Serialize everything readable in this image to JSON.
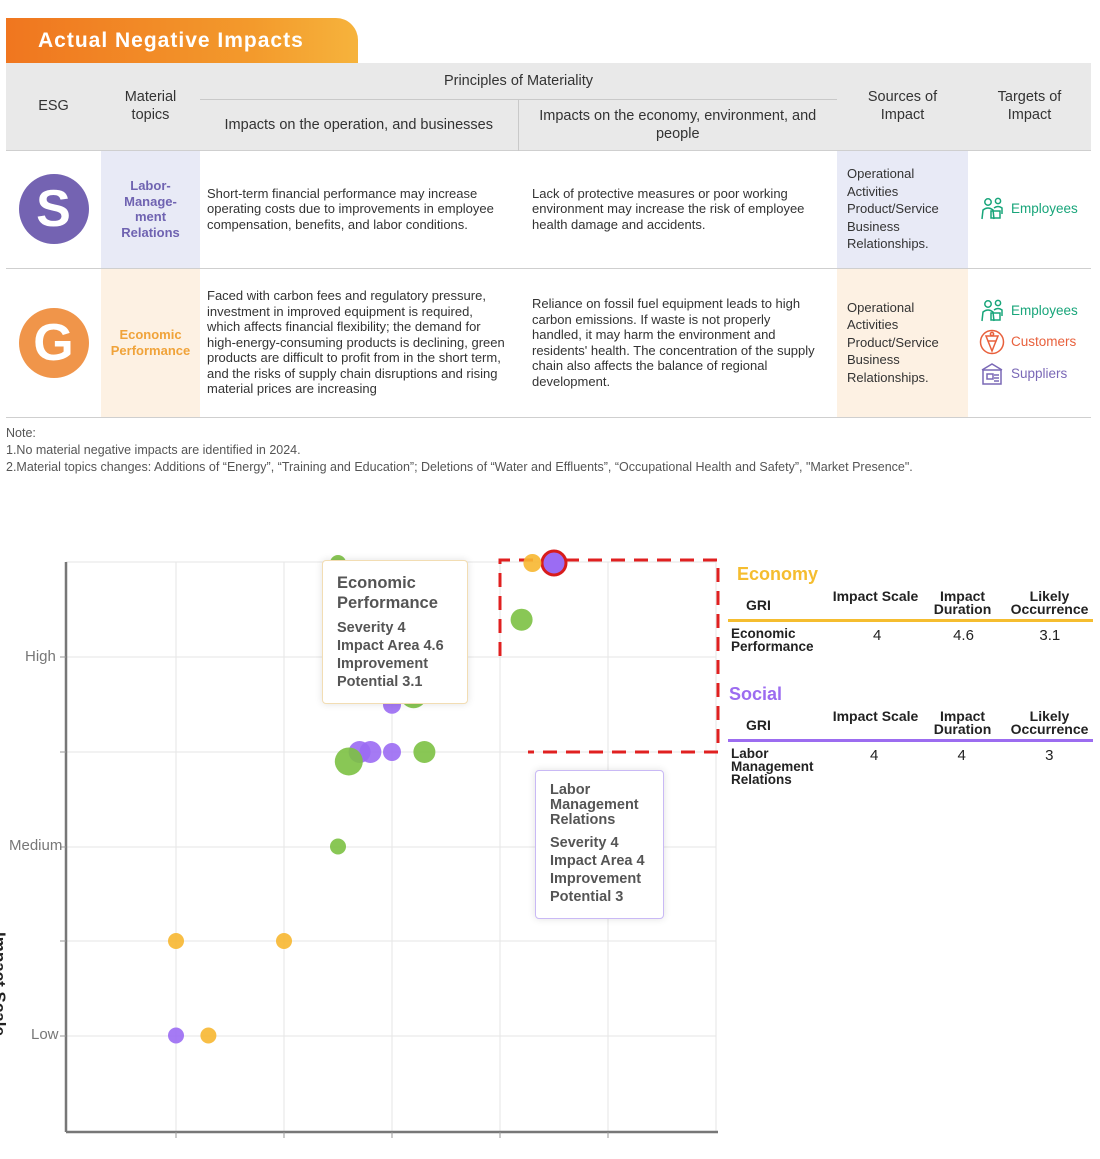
{
  "banner": "Actual Negative Impacts",
  "headers": {
    "esg": "ESG",
    "material": "Material topics",
    "principles": "Principles of Materiality",
    "operation": "Impacts on the operation, and businesses",
    "economy": "Impacts on the economy, environment, and people",
    "sources": "Sources of Impact",
    "targets": "Targets of Impact"
  },
  "rows": [
    {
      "letter": "S",
      "letter_color": "#7463b2",
      "topic": "Labor-Manage-ment Relations",
      "topic_color": "#6f63b1",
      "topic_bg": "#e8eaf6",
      "operation": "Short-term financial performance may increase operating costs due to improvements in employee compensation, benefits, and labor conditions.",
      "economy": "Lack of protective measures or poor working environment may increase the risk of employee health damage and accidents.",
      "sources": "Operational Activities Product/Service Business Relationships.",
      "targets": [
        {
          "icon": "employees-icon",
          "label": "Employees",
          "color": "#18a57a"
        }
      ]
    },
    {
      "letter": "G",
      "letter_color": "#f0954a",
      "topic": "Economic Performance",
      "topic_color": "#f0a33a",
      "topic_bg": "#fdf1e3",
      "operation": "Faced with carbon fees and regulatory pressure, investment in improved equipment is required, which affects financial flexibility; the demand for high-energy-consuming products is declining, green products are difficult to profit from in the short term, and the risks of supply chain disruptions and rising material prices are increasing",
      "economy": "Reliance on fossil fuel equipment leads to high carbon emissions. If waste is not properly handled, it may harm the environment and residents' health. The concentration of the supply chain also affects the balance of regional development.",
      "sources": "Operational Activities Product/Service Business Relationships.",
      "targets": [
        {
          "icon": "employees-icon",
          "label": "Employees",
          "color": "#18a57a"
        },
        {
          "icon": "customers-icon",
          "label": "Customers",
          "color": "#e8603c"
        },
        {
          "icon": "suppliers-icon",
          "label": "Suppliers",
          "color": "#7a68b6"
        }
      ]
    }
  ],
  "notes": {
    "label": "Note:",
    "items": [
      "1.No material negative impacts are identified in 2024.",
      "2.Material topics changes: Additions of “Energy”, “Training and Education”; Deletions of “Water and Effluents”, “Occupational Health and Safety”, \"Market Presence\"."
    ]
  },
  "chart": {
    "ylabel": "Impact Scale",
    "ylevels": [
      "High",
      "Medium",
      "Low"
    ],
    "tooltip_economic": {
      "title": "Economic Performance",
      "lines": [
        "Severity 4",
        "Impact Area 4.6",
        "Improvement Potential 3.1"
      ]
    },
    "tooltip_labor": {
      "title": "Labor Management Relations",
      "lines": [
        "Severity 4",
        "Impact Area 4",
        "Improvement Potential 3"
      ]
    }
  },
  "gri_tables": [
    {
      "heading": "Economy",
      "color": "#f5bd2f",
      "gri_label": "GRI",
      "columns": [
        "Impact Scale",
        "Impact Duration",
        "Likely Occurrence"
      ],
      "row_label": "Economic Performance",
      "values": [
        "4",
        "4.6",
        "3.1"
      ]
    },
    {
      "heading": "Social",
      "color": "#9c6cf0",
      "gri_label": "GRI",
      "columns": [
        "Impact Scale",
        "Impact Duration",
        "Likely Occurrence"
      ],
      "row_label": "Labor Management Relations",
      "values": [
        "4",
        "4",
        "3"
      ]
    }
  ],
  "chart_data": {
    "type": "scatter",
    "ylabel": "Impact Scale",
    "ytick_labels": [
      "Low",
      "Medium",
      "High"
    ],
    "y_axis": "Impact Scale",
    "colors": {
      "green": "#7cc142",
      "purple": "#9b6cf3",
      "orange": "#f7b731"
    },
    "points": [
      {
        "x": 3.5,
        "y": 3.5,
        "size": 8,
        "color": "green"
      },
      {
        "x": 5.5,
        "y": 4.0,
        "size": 16,
        "color": "orange",
        "highlighted": true
      },
      {
        "x": 5.5,
        "y": 3.5,
        "size": 12,
        "color": "purple",
        "highlighted": true
      },
      {
        "x": 5.3,
        "y": 3.5,
        "size": 9,
        "color": "orange"
      },
      {
        "x": 5.2,
        "y": 3.2,
        "size": 11,
        "color": "green"
      },
      {
        "x": 4.0,
        "y": 3.15,
        "size": 13,
        "color": "purple"
      },
      {
        "x": 4.2,
        "y": 3.0,
        "size": 8,
        "color": "purple"
      },
      {
        "x": 4.5,
        "y": 3.15,
        "size": 12,
        "color": "green"
      },
      {
        "x": 4.5,
        "y": 3.0,
        "size": 11,
        "color": "green"
      },
      {
        "x": 4.3,
        "y": 2.85,
        "size": 11,
        "color": "orange"
      },
      {
        "x": 4.0,
        "y": 2.75,
        "size": 9,
        "color": "purple"
      },
      {
        "x": 4.2,
        "y": 2.8,
        "size": 13,
        "color": "green"
      },
      {
        "x": 3.8,
        "y": 2.5,
        "size": 11,
        "color": "purple"
      },
      {
        "x": 3.7,
        "y": 2.5,
        "size": 11,
        "color": "purple"
      },
      {
        "x": 4.0,
        "y": 2.5,
        "size": 9,
        "color": "purple"
      },
      {
        "x": 4.3,
        "y": 2.5,
        "size": 11,
        "color": "green"
      },
      {
        "x": 3.6,
        "y": 2.45,
        "size": 14,
        "color": "green"
      },
      {
        "x": 3.5,
        "y": 2.0,
        "size": 8,
        "color": "green"
      },
      {
        "x": 2.0,
        "y": 1.5,
        "size": 8,
        "color": "orange"
      },
      {
        "x": 3.0,
        "y": 1.5,
        "size": 8,
        "color": "orange"
      },
      {
        "x": 2.0,
        "y": 1.0,
        "size": 8,
        "color": "purple"
      },
      {
        "x": 2.3,
        "y": 1.0,
        "size": 8,
        "color": "orange"
      }
    ]
  }
}
